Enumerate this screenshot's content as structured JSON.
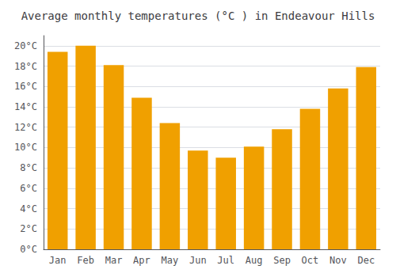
{
  "chart_data": {
    "type": "bar",
    "title": "Average monthly temperatures (°C ) in Endeavour Hills",
    "categories": [
      "Jan",
      "Feb",
      "Mar",
      "Apr",
      "May",
      "Jun",
      "Jul",
      "Aug",
      "Sep",
      "Oct",
      "Nov",
      "Dec"
    ],
    "values": [
      19.4,
      20.0,
      18.1,
      14.9,
      12.4,
      9.7,
      9.0,
      10.1,
      11.8,
      13.8,
      15.8,
      17.9
    ],
    "color": "#F0A000",
    "ylim": [
      0,
      21
    ],
    "yticks": [
      {
        "value": 0,
        "label": "0°C"
      },
      {
        "value": 2,
        "label": "2°C"
      },
      {
        "value": 4,
        "label": "4°C"
      },
      {
        "value": 6,
        "label": "6°C"
      },
      {
        "value": 8,
        "label": "8°C"
      },
      {
        "value": 10,
        "label": "10°C"
      },
      {
        "value": 12,
        "label": "12°C"
      },
      {
        "value": 14,
        "label": "14°C"
      },
      {
        "value": 16,
        "label": "16°C"
      },
      {
        "value": 18,
        "label": "18°C"
      },
      {
        "value": 20,
        "label": "20°C"
      }
    ],
    "grid": true
  }
}
